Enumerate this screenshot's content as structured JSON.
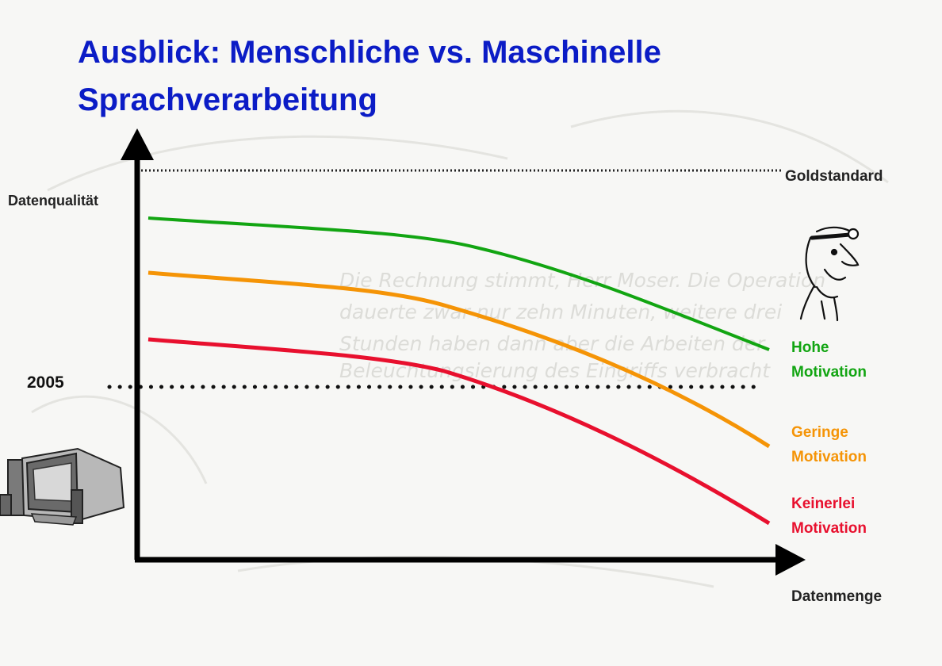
{
  "slide": {
    "title_line1": "Ausblick: Menschliche vs. Maschinelle",
    "title_line2": "Sprachverarbeitung"
  },
  "watermark": {
    "text_lines": [
      "Die Rechnung stimmt, Herr Moser. Die Operation",
      "dauerte zwar nur zehn Minuten, weitere drei",
      "Stunden haben dann aber die Arbeiten der",
      "Beleuchtungsierung des Eingriffs verbracht"
    ]
  },
  "axes": {
    "y_label": "Datenqualität",
    "x_label": "Datenmenge"
  },
  "reference_lines": {
    "gold_standard": "Goldstandard",
    "year_marker": "2005"
  },
  "curves": [
    {
      "id": "hohe",
      "line1": "Hohe",
      "line2": "Motivation",
      "color": "#12a512"
    },
    {
      "id": "geringe",
      "line1": "Geringe",
      "line2": "Motivation",
      "color": "#f59406"
    },
    {
      "id": "keinerlei",
      "line1": "Keinerlei",
      "line2": "Motivation",
      "color": "#e8102e"
    }
  ],
  "illustrations": {
    "doctor": "doctor-caricature-icon",
    "computer": "desktop-computer-icon"
  }
}
